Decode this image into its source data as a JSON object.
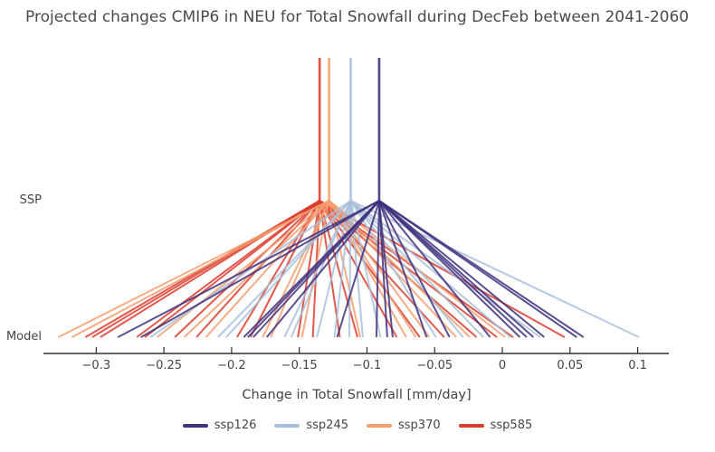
{
  "chart_data": {
    "type": "line",
    "title": "Projected changes CMIP6 in NEU for Total Snowfall during DecFeb between 2041-2060",
    "xlabel": "Change in Total Snowfall [mm/day]",
    "ylabel": "",
    "y_categories": [
      "SSP",
      "Model"
    ],
    "x_range": [
      -0.339,
      0.123
    ],
    "grid": false,
    "legend_position": "bottom-center",
    "x_ticks": [
      {
        "value": -0.3,
        "label": "−0.3"
      },
      {
        "value": -0.25,
        "label": "−0.25"
      },
      {
        "value": -0.2,
        "label": "−0.2"
      },
      {
        "value": -0.15,
        "label": "−0.15"
      },
      {
        "value": -0.1,
        "label": "−0.1"
      },
      {
        "value": -0.05,
        "label": "−0.05"
      },
      {
        "value": 0,
        "label": "0"
      },
      {
        "value": 0.05,
        "label": "0.05"
      },
      {
        "value": 0.1,
        "label": "0.1"
      }
    ],
    "series": [
      {
        "name": "ssp126",
        "color": "#40307e",
        "ssp_value": -0.091,
        "models": [
          -0.284,
          -0.267,
          -0.191,
          -0.188,
          -0.184,
          -0.174,
          -0.122,
          -0.093,
          -0.085,
          -0.081,
          -0.056,
          -0.039,
          -0.009,
          0.013,
          0.018,
          0.023,
          0.031,
          0.055,
          0.06
        ]
      },
      {
        "name": "ssp245",
        "color": "#a8bfdb",
        "ssp_value": -0.112,
        "models": [
          -0.26,
          -0.21,
          -0.204,
          -0.161,
          -0.156,
          -0.137,
          -0.124,
          -0.113,
          -0.103,
          -0.09,
          -0.049,
          -0.029,
          -0.014,
          0.006,
          0.028,
          0.101
        ]
      },
      {
        "name": "ssp370",
        "color": "#f59e6e",
        "ssp_value": -0.128,
        "models": [
          -0.328,
          -0.318,
          -0.255,
          -0.235,
          -0.219,
          -0.177,
          -0.171,
          -0.148,
          -0.105,
          -0.071,
          -0.064,
          -0.054,
          -0.034,
          -0.024,
          0.002
        ]
      },
      {
        "name": "ssp585",
        "color": "#dd3b2b",
        "ssp_value": -0.135,
        "models": [
          -0.308,
          -0.303,
          -0.297,
          -0.27,
          -0.264,
          -0.242,
          -0.226,
          -0.196,
          -0.186,
          -0.151,
          -0.14,
          -0.12,
          -0.107,
          -0.078,
          -0.061,
          -0.043,
          -0.019,
          -0.004,
          0.008,
          0.046
        ]
      }
    ]
  }
}
